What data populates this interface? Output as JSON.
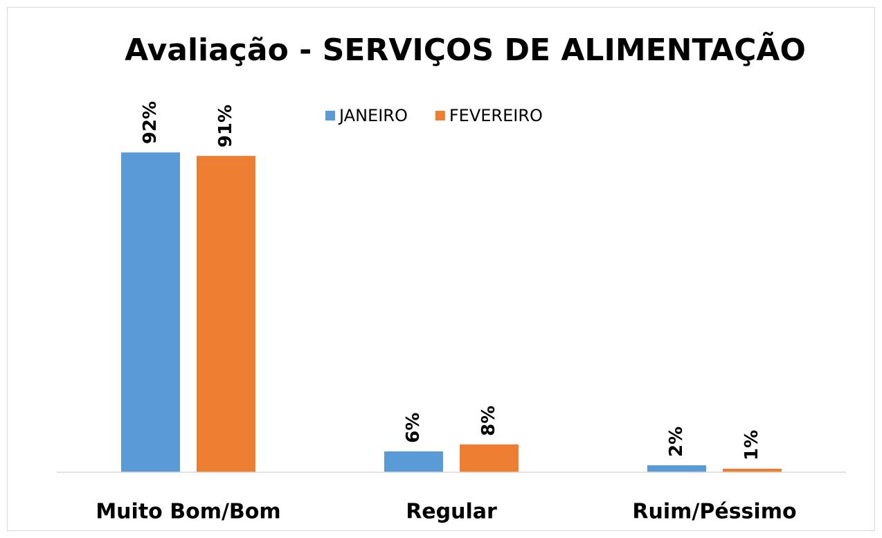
{
  "chart_data": {
    "type": "bar",
    "title": "Avaliação - SERVIÇOS DE ALIMENTAÇÃO",
    "categories": [
      "Muito Bom/Bom",
      "Regular",
      "Ruim/Péssimo"
    ],
    "series": [
      {
        "name": "JANEIRO",
        "color": "#5b9bd5",
        "values": [
          92,
          6,
          2
        ],
        "value_labels": [
          "92%",
          "6%",
          "2%"
        ]
      },
      {
        "name": "FEVEREIRO",
        "color": "#ed7d31",
        "values": [
          91,
          8,
          1
        ],
        "value_labels": [
          "91%",
          "8%",
          "1%"
        ]
      }
    ],
    "ylim": [
      0,
      100
    ],
    "legend": "top"
  }
}
